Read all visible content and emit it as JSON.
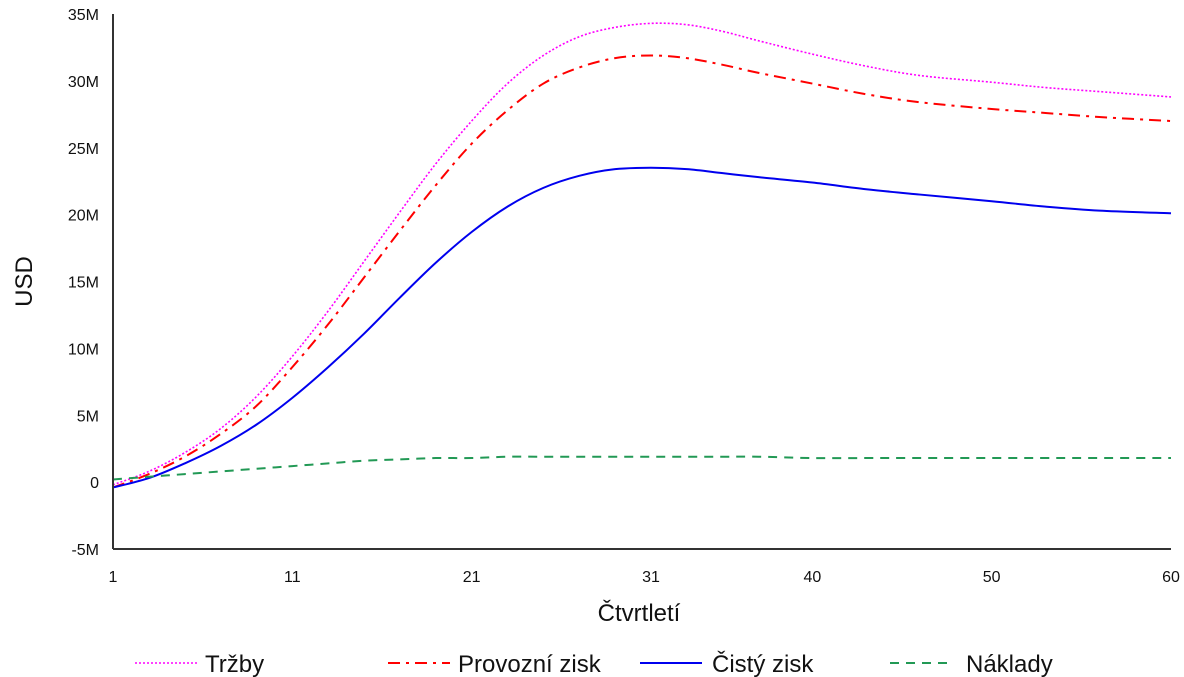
{
  "chart_data": {
    "type": "line",
    "xlabel": "Čtvrtletí",
    "ylabel": "USD",
    "xlim": [
      1,
      60
    ],
    "ylim": [
      -5000000,
      35000000
    ],
    "x_ticks": [
      1,
      11,
      21,
      31,
      40,
      50,
      60
    ],
    "y_ticks": [
      {
        "value": 35000000,
        "label": "35M"
      },
      {
        "value": 30000000,
        "label": "30M"
      },
      {
        "value": 25000000,
        "label": "25M"
      },
      {
        "value": 20000000,
        "label": "20M"
      },
      {
        "value": 15000000,
        "label": "15M"
      },
      {
        "value": 10000000,
        "label": "10M"
      },
      {
        "value": 5000000,
        "label": "5M"
      },
      {
        "value": 0,
        "label": "0"
      },
      {
        "value": -5000000,
        "label": "-5M"
      }
    ],
    "grid": false,
    "legend_position": "bottom",
    "x": [
      1,
      3,
      5,
      7,
      9,
      11,
      13,
      15,
      17,
      19,
      21,
      23,
      25,
      27,
      29,
      31,
      33,
      35,
      37,
      40,
      43,
      46,
      50,
      53,
      56,
      60
    ],
    "series": [
      {
        "name": "Tržby",
        "color": "#ff00ff",
        "dash": "dotted",
        "values": [
          -0.2,
          0.8,
          2.2,
          4.0,
          6.4,
          9.4,
          12.8,
          16.5,
          20.2,
          23.8,
          27.0,
          29.8,
          31.9,
          33.3,
          34.0,
          34.3,
          34.2,
          33.7,
          33.0,
          32.0,
          31.1,
          30.4,
          29.9,
          29.5,
          29.2,
          28.8
        ]
      },
      {
        "name": "Provozní zisk",
        "color": "#ff0000",
        "dash": "dashdot",
        "values": [
          -0.4,
          0.6,
          1.9,
          3.6,
          5.7,
          8.6,
          11.8,
          15.3,
          18.8,
          22.2,
          25.3,
          27.8,
          29.8,
          31.0,
          31.7,
          31.9,
          31.7,
          31.2,
          30.6,
          29.8,
          29.0,
          28.4,
          27.9,
          27.6,
          27.3,
          27.0
        ]
      },
      {
        "name": "Čistý zisk",
        "color": "#0000ee",
        "dash": "solid",
        "values": [
          -0.4,
          0.3,
          1.4,
          2.7,
          4.3,
          6.3,
          8.6,
          11.1,
          13.8,
          16.4,
          18.7,
          20.6,
          22.0,
          22.9,
          23.4,
          23.5,
          23.4,
          23.1,
          22.8,
          22.4,
          21.9,
          21.5,
          21.0,
          20.6,
          20.3,
          20.1
        ]
      },
      {
        "name": "Náklady",
        "color": "#229955",
        "dash": "dashed",
        "values": [
          0.2,
          0.4,
          0.6,
          0.8,
          1.0,
          1.2,
          1.4,
          1.6,
          1.7,
          1.8,
          1.8,
          1.9,
          1.9,
          1.9,
          1.9,
          1.9,
          1.9,
          1.9,
          1.9,
          1.8,
          1.8,
          1.8,
          1.8,
          1.8,
          1.8,
          1.8
        ]
      }
    ],
    "value_unit_multiplier": 1000000
  }
}
